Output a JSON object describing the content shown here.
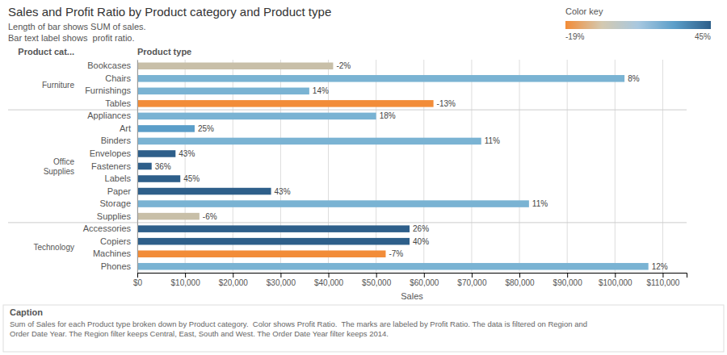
{
  "chart_data": {
    "type": "bar",
    "orientation": "horizontal",
    "title": "Sales and Profit Ratio by Product category and Product type",
    "subtitle": [
      "Length of bar shows SUM of sales.",
      "Bar text label shows  profit ratio."
    ],
    "xlabel": "Sales",
    "ylabel": "Product type",
    "group_title": "Product cat...",
    "categories": [
      "Bookcases",
      "Chairs",
      "Furnishings",
      "Tables",
      "Appliances",
      "Art",
      "Binders",
      "Envelopes",
      "Fasteners",
      "Labels",
      "Paper",
      "Storage",
      "Supplies",
      "Accessories",
      "Copiers",
      "Machines",
      "Phones"
    ],
    "group_labels": [
      "Furniture",
      "Furniture",
      "Furniture",
      "Furniture",
      "Office\nSupplies",
      "Office\nSupplies",
      "Office\nSupplies",
      "Office\nSupplies",
      "Office\nSupplies",
      "Office\nSupplies",
      "Office\nSupplies",
      "Office\nSupplies",
      "Office\nSupplies",
      "Technology",
      "Technology",
      "Technology",
      "Technology"
    ],
    "values": [
      41000,
      102000,
      36000,
      62000,
      50000,
      12000,
      72000,
      8000,
      3000,
      9000,
      28000,
      82000,
      13000,
      57000,
      57000,
      52000,
      107000
    ],
    "colors": [
      "#c8bfa8",
      "#7ab3d3",
      "#7ab3d3",
      "#f28c38",
      "#7ab3d3",
      "#5b9ec9",
      "#7ab3d3",
      "#2e5f8a",
      "#2e5f8a",
      "#2e5f8a",
      "#2e5f8a",
      "#7ab3d3",
      "#c8bfa8",
      "#2e5f8a",
      "#2e5f8a",
      "#f28c38",
      "#7ab3d3"
    ],
    "profit_ratios": [
      -2,
      8,
      14,
      -13,
      18,
      25,
      11,
      43,
      36,
      45,
      43,
      11,
      -6,
      26,
      40,
      -7,
      12
    ],
    "profit_ratio_labels": [
      "-2%",
      "8%",
      "14%",
      "-13%",
      "18%",
      "25%",
      "11%",
      "43%",
      "36%",
      "45%",
      "43%",
      "11%",
      "-6%",
      "26%",
      "40%",
      "-7%",
      "12%"
    ],
    "xlim": [
      0,
      115000
    ],
    "xticks": [
      {
        "value": 0,
        "label": "$0"
      },
      {
        "value": 10000,
        "label": "$10,000"
      },
      {
        "value": 20000,
        "label": "$20,000"
      },
      {
        "value": 30000,
        "label": "$30,000"
      },
      {
        "value": 40000,
        "label": "$40,000"
      },
      {
        "value": 50000,
        "label": "$50,000"
      },
      {
        "value": 60000,
        "label": "$60,000"
      },
      {
        "value": 70000,
        "label": "$70,000"
      },
      {
        "value": 80000,
        "label": "$80,000"
      },
      {
        "value": 90000,
        "label": "$90,000"
      },
      {
        "value": 100000,
        "label": "$100,000"
      },
      {
        "value": 110000,
        "label": "$110,000"
      }
    ],
    "grid": true,
    "color_key": {
      "title": "Color key",
      "min": -19,
      "max": 45,
      "min_label": "-19%",
      "max_label": "45%",
      "colors": [
        "#f28c38",
        "#d4c9b0",
        "#a8c8e0",
        "#5b9ec9",
        "#2e5f8a"
      ]
    },
    "caption_title": "Caption",
    "caption_text": "Sum of Sales for each Product type broken down by Product category.  Color shows Profit Ratio.  The marks are labeled by Profit Ratio. The data is filtered on Region and\nOrder Date Year. The Region filter keeps Central, East, South and West. The Order Date Year filter keeps 2014."
  }
}
